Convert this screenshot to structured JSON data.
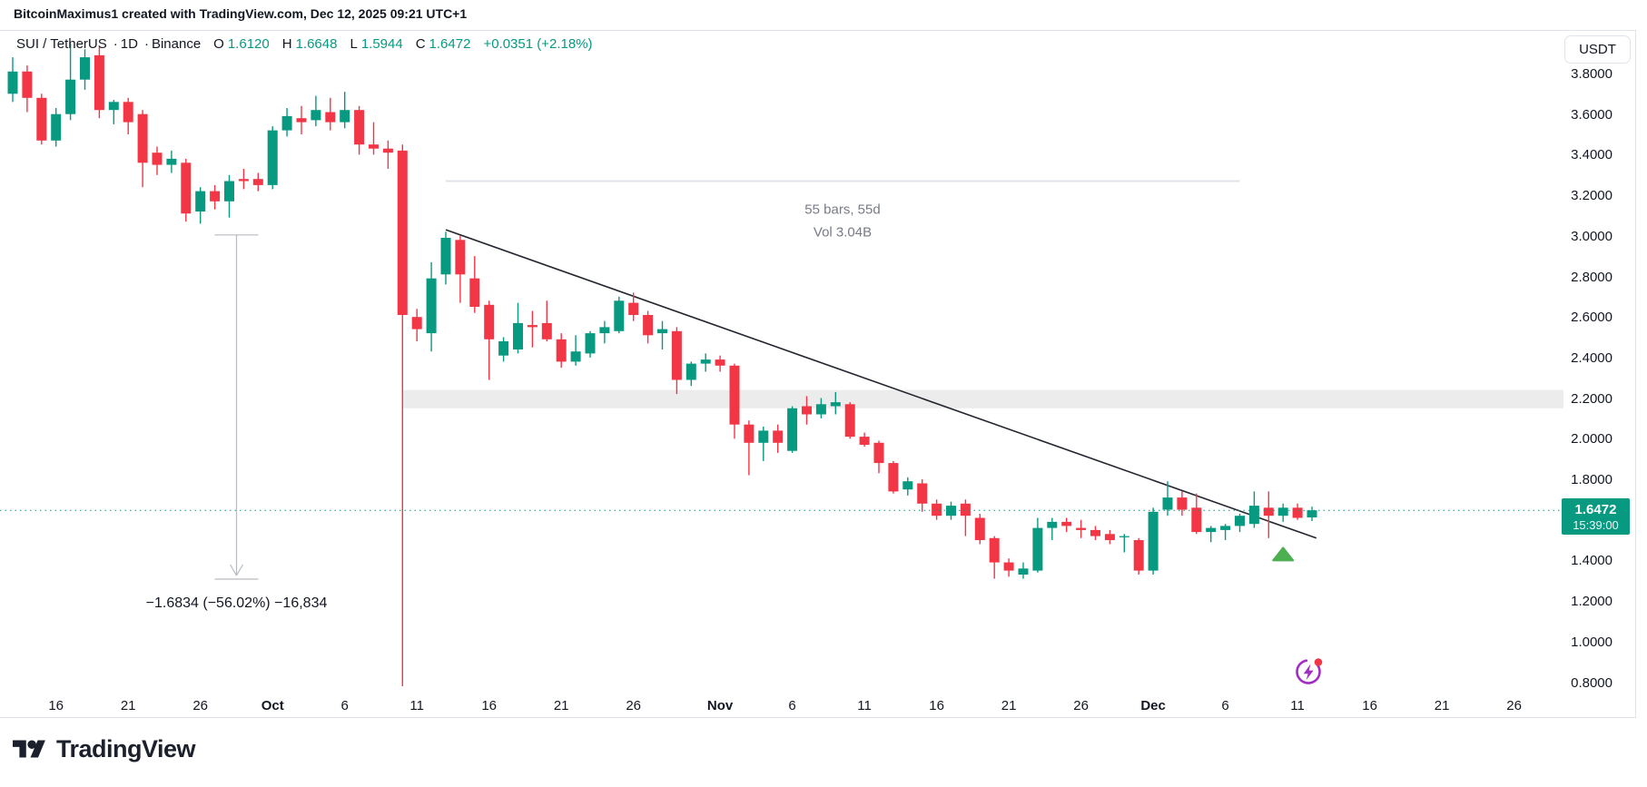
{
  "attribution": "BitcoinMaximus1 created with TradingView.com, Dec 12, 2025 09:21 UTC+1",
  "legend": {
    "symbol": "SUI / TetherUS",
    "separator": "·",
    "interval": "1D",
    "exchange": "Binance",
    "o_label": "O",
    "o": "1.6120",
    "h_label": "H",
    "h": "1.6648",
    "l_label": "L",
    "l": "1.5944",
    "c_label": "C",
    "c": "1.6472",
    "change": "+0.0351 (+2.18%)"
  },
  "axis": {
    "currency": "USDT",
    "last_price": "1.6472",
    "last_time": "15:39:00",
    "price_ticks": [
      "3.8000",
      "3.6000",
      "3.4000",
      "3.2000",
      "3.0000",
      "2.8000",
      "2.6000",
      "2.4000",
      "2.2000",
      "2.0000",
      "1.8000",
      "1.4000",
      "1.2000",
      "1.0000",
      "0.8000"
    ]
  },
  "logo": {
    "text": "TradingView"
  },
  "colors": {
    "up": "#089981",
    "down": "#f23645",
    "last_price_line": "#089981",
    "badge_bg": "#089981",
    "zone": "#ececec",
    "trendline": "#23262f",
    "measure": "#b8bac1",
    "measure_text": "#131722",
    "range_line": "#e0e3eb",
    "range_text": "#787b86",
    "axis_text": "#131722",
    "border": "#e0e3eb",
    "marker_up": "#4caf50",
    "flash_icon": "#a32cc4",
    "flash_dot": "#f23645"
  },
  "chart_data": {
    "type": "candlestick",
    "symbol": "SUI/USDT",
    "interval": "1D",
    "start_date": "2025-09-13",
    "ylim": [
      0.8,
      3.8
    ],
    "price_step": 0.2,
    "candles": [
      [
        3.7,
        3.88,
        3.66,
        3.81
      ],
      [
        3.81,
        3.84,
        3.61,
        3.68
      ],
      [
        3.68,
        3.7,
        3.45,
        3.47
      ],
      [
        3.47,
        3.63,
        3.44,
        3.6
      ],
      [
        3.6,
        3.95,
        3.57,
        3.77
      ],
      [
        3.77,
        3.92,
        3.72,
        3.88
      ],
      [
        3.89,
        3.93,
        3.58,
        3.62
      ],
      [
        3.62,
        3.67,
        3.55,
        3.66
      ],
      [
        3.66,
        3.68,
        3.5,
        3.56
      ],
      [
        3.6,
        3.62,
        3.24,
        3.36
      ],
      [
        3.41,
        3.44,
        3.3,
        3.35
      ],
      [
        3.35,
        3.42,
        3.31,
        3.38
      ],
      [
        3.36,
        3.38,
        3.07,
        3.11
      ],
      [
        3.12,
        3.24,
        3.06,
        3.22
      ],
      [
        3.22,
        3.25,
        3.13,
        3.17
      ],
      [
        3.17,
        3.3,
        3.09,
        3.27
      ],
      [
        3.28,
        3.33,
        3.23,
        3.27
      ],
      [
        3.28,
        3.31,
        3.22,
        3.25
      ],
      [
        3.25,
        3.54,
        3.23,
        3.52
      ],
      [
        3.52,
        3.63,
        3.49,
        3.59
      ],
      [
        3.58,
        3.64,
        3.5,
        3.56
      ],
      [
        3.57,
        3.69,
        3.54,
        3.62
      ],
      [
        3.61,
        3.68,
        3.52,
        3.56
      ],
      [
        3.56,
        3.71,
        3.53,
        3.62
      ],
      [
        3.62,
        3.64,
        3.4,
        3.45
      ],
      [
        3.45,
        3.56,
        3.4,
        3.43
      ],
      [
        3.43,
        3.47,
        3.33,
        3.41
      ],
      [
        3.42,
        3.45,
        0.78,
        2.61
      ],
      [
        2.6,
        2.64,
        2.48,
        2.54
      ],
      [
        2.52,
        2.87,
        2.43,
        2.79
      ],
      [
        2.81,
        3.02,
        2.76,
        2.99
      ],
      [
        2.98,
        3.0,
        2.67,
        2.81
      ],
      [
        2.79,
        2.9,
        2.62,
        2.65
      ],
      [
        2.66,
        2.68,
        2.29,
        2.49
      ],
      [
        2.41,
        2.5,
        2.38,
        2.48
      ],
      [
        2.44,
        2.67,
        2.42,
        2.57
      ],
      [
        2.56,
        2.63,
        2.45,
        2.55
      ],
      [
        2.57,
        2.68,
        2.48,
        2.49
      ],
      [
        2.49,
        2.52,
        2.35,
        2.38
      ],
      [
        2.38,
        2.51,
        2.36,
        2.43
      ],
      [
        2.42,
        2.53,
        2.4,
        2.52
      ],
      [
        2.52,
        2.58,
        2.47,
        2.55
      ],
      [
        2.53,
        2.7,
        2.52,
        2.68
      ],
      [
        2.67,
        2.72,
        2.58,
        2.61
      ],
      [
        2.61,
        2.63,
        2.47,
        2.51
      ],
      [
        2.52,
        2.58,
        2.44,
        2.54
      ],
      [
        2.53,
        2.55,
        2.22,
        2.29
      ],
      [
        2.29,
        2.38,
        2.26,
        2.37
      ],
      [
        2.37,
        2.42,
        2.33,
        2.39
      ],
      [
        2.39,
        2.41,
        2.33,
        2.36
      ],
      [
        2.36,
        2.37,
        2.0,
        2.07
      ],
      [
        2.07,
        2.09,
        1.82,
        1.98
      ],
      [
        1.98,
        2.06,
        1.89,
        2.04
      ],
      [
        2.04,
        2.07,
        1.93,
        1.98
      ],
      [
        1.94,
        2.16,
        1.93,
        2.15
      ],
      [
        2.16,
        2.21,
        2.07,
        2.12
      ],
      [
        2.12,
        2.2,
        2.1,
        2.17
      ],
      [
        2.16,
        2.23,
        2.12,
        2.18
      ],
      [
        2.17,
        2.18,
        2.0,
        2.01
      ],
      [
        2.01,
        2.03,
        1.96,
        1.97
      ],
      [
        1.98,
        1.99,
        1.83,
        1.88
      ],
      [
        1.88,
        1.89,
        1.73,
        1.74
      ],
      [
        1.75,
        1.81,
        1.72,
        1.79
      ],
      [
        1.78,
        1.8,
        1.64,
        1.68
      ],
      [
        1.68,
        1.7,
        1.6,
        1.62
      ],
      [
        1.62,
        1.69,
        1.6,
        1.67
      ],
      [
        1.68,
        1.7,
        1.52,
        1.62
      ],
      [
        1.61,
        1.63,
        1.48,
        1.5
      ],
      [
        1.51,
        1.52,
        1.31,
        1.39
      ],
      [
        1.39,
        1.41,
        1.32,
        1.35
      ],
      [
        1.33,
        1.39,
        1.31,
        1.36
      ],
      [
        1.35,
        1.61,
        1.34,
        1.56
      ],
      [
        1.56,
        1.61,
        1.5,
        1.59
      ],
      [
        1.59,
        1.61,
        1.54,
        1.57
      ],
      [
        1.56,
        1.6,
        1.51,
        1.55
      ],
      [
        1.55,
        1.57,
        1.5,
        1.52
      ],
      [
        1.53,
        1.55,
        1.48,
        1.5
      ],
      [
        1.52,
        1.53,
        1.44,
        1.52
      ],
      [
        1.5,
        1.51,
        1.33,
        1.35
      ],
      [
        1.35,
        1.66,
        1.33,
        1.64
      ],
      [
        1.65,
        1.79,
        1.62,
        1.71
      ],
      [
        1.71,
        1.74,
        1.62,
        1.65
      ],
      [
        1.66,
        1.73,
        1.53,
        1.54
      ],
      [
        1.54,
        1.57,
        1.49,
        1.56
      ],
      [
        1.55,
        1.58,
        1.5,
        1.57
      ],
      [
        1.57,
        1.63,
        1.54,
        1.62
      ],
      [
        1.58,
        1.74,
        1.56,
        1.67
      ],
      [
        1.66,
        1.74,
        1.51,
        1.62
      ],
      [
        1.62,
        1.68,
        1.59,
        1.66
      ],
      [
        1.66,
        1.68,
        1.6,
        1.61
      ],
      [
        1.612,
        1.6648,
        1.5944,
        1.6472
      ]
    ],
    "time_axis": [
      {
        "label": "16",
        "day": 3
      },
      {
        "label": "21",
        "day": 8
      },
      {
        "label": "26",
        "day": 13
      },
      {
        "label": "Oct",
        "day": 18,
        "bold": true
      },
      {
        "label": "6",
        "day": 23
      },
      {
        "label": "11",
        "day": 28
      },
      {
        "label": "16",
        "day": 33
      },
      {
        "label": "21",
        "day": 38
      },
      {
        "label": "26",
        "day": 43
      },
      {
        "label": "Nov",
        "day": 49,
        "bold": true
      },
      {
        "label": "6",
        "day": 54
      },
      {
        "label": "11",
        "day": 59
      },
      {
        "label": "16",
        "day": 64
      },
      {
        "label": "21",
        "day": 69
      },
      {
        "label": "26",
        "day": 74
      },
      {
        "label": "Dec",
        "day": 79,
        "bold": true
      },
      {
        "label": "6",
        "day": 84
      },
      {
        "label": "11",
        "day": 89
      },
      {
        "label": "16",
        "day": 94
      },
      {
        "label": "21",
        "day": 99
      },
      {
        "label": "26",
        "day": 104
      }
    ],
    "overlays": {
      "last_price_line": 1.6472,
      "trendline": {
        "from_day": 30,
        "from_price": 3.03,
        "to_day": 90.3,
        "to_price": 1.51
      },
      "zone": {
        "start_day": 27,
        "price_top": 2.24,
        "price_bottom": 2.15
      },
      "date_range": {
        "from_day": 30,
        "to_day": 85,
        "line_price": 3.27,
        "label_line1": "55 bars, 55d",
        "label_line2": "Vol 3.04B"
      },
      "price_range": {
        "day": 15.5,
        "from_price": 3.0045,
        "to_price": 1.3211,
        "label": "−1.6834 (−56.02%) −16,834"
      },
      "marker_up": {
        "day": 88,
        "price": 1.4
      }
    }
  }
}
